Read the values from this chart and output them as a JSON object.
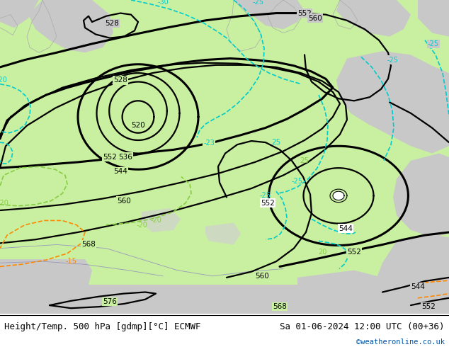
{
  "title_left": "Height/Temp. 500 hPa [gdmp][°C] ECMWF",
  "title_right": "Sa 01-06-2024 12:00 UTC (00+36)",
  "credit": "©weatheronline.co.uk",
  "credit_color": "#0055aa",
  "bg_color": "#ffffff",
  "green_light": "#c8f0a0",
  "green_land": "#b0d890",
  "grey_land": "#c8c8c8",
  "grey_sea": "#d8d8d8",
  "black_lw": 1.6,
  "thick_lw": 2.2,
  "cyan_color": "#00cccc",
  "cyan_lw": 1.0,
  "green_label": "#88cc44",
  "orange_color": "#ff8800",
  "figsize": [
    6.34,
    4.9
  ],
  "dpi": 100,
  "caption_fontsize": 9,
  "credit_fontsize": 7.5
}
